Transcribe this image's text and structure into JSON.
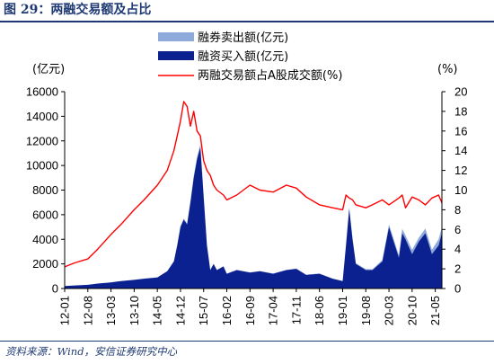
{
  "figure": {
    "title": "图 29：两融交易额及占比",
    "source": "资料来源：Wind，安信证券研究中心"
  },
  "colors": {
    "sell_area": "#8eaadb",
    "buy_area": "#0c2190",
    "ratio_line": "#ff0000",
    "title": "#1f3a73"
  },
  "chart_data": {
    "type": "area",
    "title": "",
    "ylabel_left": "(亿元)",
    "ylabel_right": "(%)",
    "ylim_left": [
      0,
      16000
    ],
    "ylim_right": [
      0,
      20
    ],
    "yticks_left": [
      "0",
      "2000",
      "4000",
      "6000",
      "8000",
      "10000",
      "12000",
      "14000",
      "16000"
    ],
    "yticks_right": [
      "0",
      "2",
      "4",
      "6",
      "8",
      "10",
      "12",
      "14",
      "16",
      "18",
      "20"
    ],
    "xticks": [
      "12-01",
      "12-08",
      "13-03",
      "13-10",
      "14-05",
      "14-12",
      "15-07",
      "16-02",
      "16-09",
      "17-04",
      "17-11",
      "18-06",
      "19-01",
      "19-08",
      "20-03",
      "20-10",
      "21-05"
    ],
    "legend_position": "top-center",
    "grid": false,
    "x": [
      "12-01",
      "12-04",
      "12-08",
      "12-11",
      "13-03",
      "13-06",
      "13-10",
      "14-01",
      "14-05",
      "14-08",
      "14-09",
      "14-10",
      "14-11",
      "14-12",
      "15-01",
      "15-02",
      "15-03",
      "15-04",
      "15-05",
      "15-06",
      "15-07",
      "15-08",
      "15-09",
      "15-10",
      "15-11",
      "16-01",
      "16-02",
      "16-05",
      "16-09",
      "16-12",
      "17-04",
      "17-08",
      "17-11",
      "18-02",
      "18-06",
      "18-10",
      "19-01",
      "19-02",
      "19-03",
      "19-04",
      "19-05",
      "19-08",
      "19-10",
      "20-01",
      "20-03",
      "20-06",
      "20-07",
      "20-08",
      "20-10",
      "20-12",
      "21-02",
      "21-04",
      "21-06",
      "21-07"
    ],
    "series": [
      {
        "name": "融券卖出额(亿元)",
        "type": "area",
        "axis": "left",
        "values": [
          0,
          0,
          0,
          2,
          5,
          8,
          10,
          12,
          15,
          20,
          25,
          30,
          45,
          70,
          90,
          90,
          110,
          160,
          200,
          220,
          120,
          40,
          10,
          5,
          5,
          5,
          5,
          10,
          15,
          20,
          20,
          20,
          20,
          25,
          20,
          10,
          15,
          40,
          80,
          90,
          50,
          80,
          60,
          120,
          200,
          200,
          350,
          320,
          350,
          320,
          380,
          350,
          500,
          500
        ]
      },
      {
        "name": "融资买入额(亿元)",
        "type": "area",
        "axis": "left",
        "values": [
          200,
          250,
          300,
          400,
          500,
          600,
          700,
          800,
          900,
          1400,
          1800,
          2200,
          3500,
          5000,
          5600,
          5200,
          7000,
          9000,
          10500,
          11500,
          7500,
          3500,
          1500,
          2000,
          1500,
          1800,
          1200,
          1500,
          1300,
          1400,
          1200,
          1500,
          1600,
          1100,
          1200,
          800,
          600,
          3500,
          6500,
          4000,
          2000,
          1500,
          1500,
          2200,
          5000,
          2500,
          4500,
          4000,
          2800,
          3800,
          4500,
          2800,
          3500,
          4500
        ]
      },
      {
        "name": "两融交易额占A股成交额(%)",
        "type": "line",
        "axis": "right",
        "values": [
          2.2,
          2.6,
          3.0,
          4.0,
          5.5,
          6.5,
          8.0,
          9.0,
          10.5,
          12.0,
          13.0,
          14.0,
          15.5,
          17.0,
          19.0,
          18.5,
          16.5,
          18.0,
          16.0,
          15.5,
          13.0,
          12.0,
          11.5,
          10.5,
          10.0,
          9.5,
          9.0,
          9.5,
          10.5,
          10.0,
          9.8,
          10.5,
          10.2,
          9.3,
          8.5,
          8.2,
          8.0,
          9.5,
          9.2,
          9.0,
          8.5,
          8.2,
          8.5,
          9.0,
          8.5,
          9.2,
          9.5,
          8.2,
          9.3,
          9.0,
          8.5,
          9.2,
          9.5,
          8.7
        ]
      }
    ]
  }
}
